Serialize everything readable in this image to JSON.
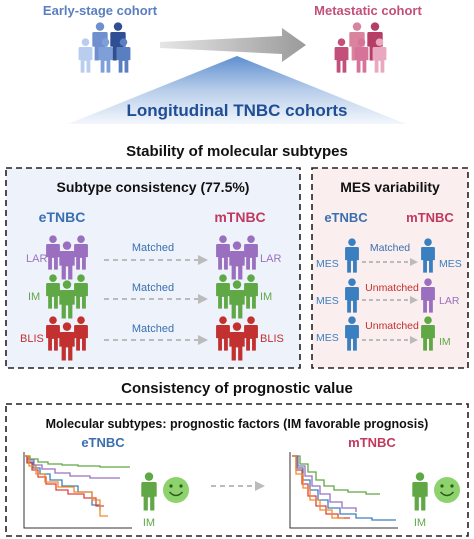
{
  "header": {
    "early_label": "Early-stage cohort",
    "meta_label": "Metastatic cohort",
    "banner_label": "Longitudinal TNBC cohorts"
  },
  "stability": {
    "title": "Stability of molecular subtypes",
    "consistency": {
      "title": "Subtype consistency (77.5%)",
      "left_header": "eTNBC",
      "right_header": "mTNBC",
      "rows": [
        {
          "left": "LAR",
          "arrow": "Matched",
          "right": "LAR",
          "color": "#9b6fc0"
        },
        {
          "left": "IM",
          "arrow": "Matched",
          "right": "IM",
          "color": "#5fa845"
        },
        {
          "left": "BLIS",
          "arrow": "Matched",
          "right": "BLIS",
          "color": "#c2302f"
        }
      ]
    },
    "mes": {
      "title": "MES variability",
      "left_header": "eTNBC",
      "right_header": "mTNBC",
      "left_rows": [
        "MES",
        "MES",
        "MES"
      ],
      "arrows": [
        "Matched",
        "Unmatched",
        "Unmatched"
      ],
      "right_rows": [
        "MES",
        "LAR",
        "IM"
      ]
    }
  },
  "prognostic": {
    "title": "Consistency of prognostic value",
    "box_title": "Molecular subtypes: prognostic factors (IM favorable prognosis)",
    "left_label": "eTNBC",
    "right_label": "mTNBC",
    "left_person": "IM",
    "right_person": "IM"
  },
  "colors": {
    "early_blue": "#5a7fc0",
    "metastatic_pink": "#c2507a",
    "banner_blue": "#1f4e96",
    "lar_purple": "#9b6fc0",
    "im_green": "#5fa845",
    "blis_red": "#c2302f",
    "mes_blue": "#3a80c0",
    "label_blue": "#3a6fb0",
    "label_pink": "#c0395f"
  }
}
